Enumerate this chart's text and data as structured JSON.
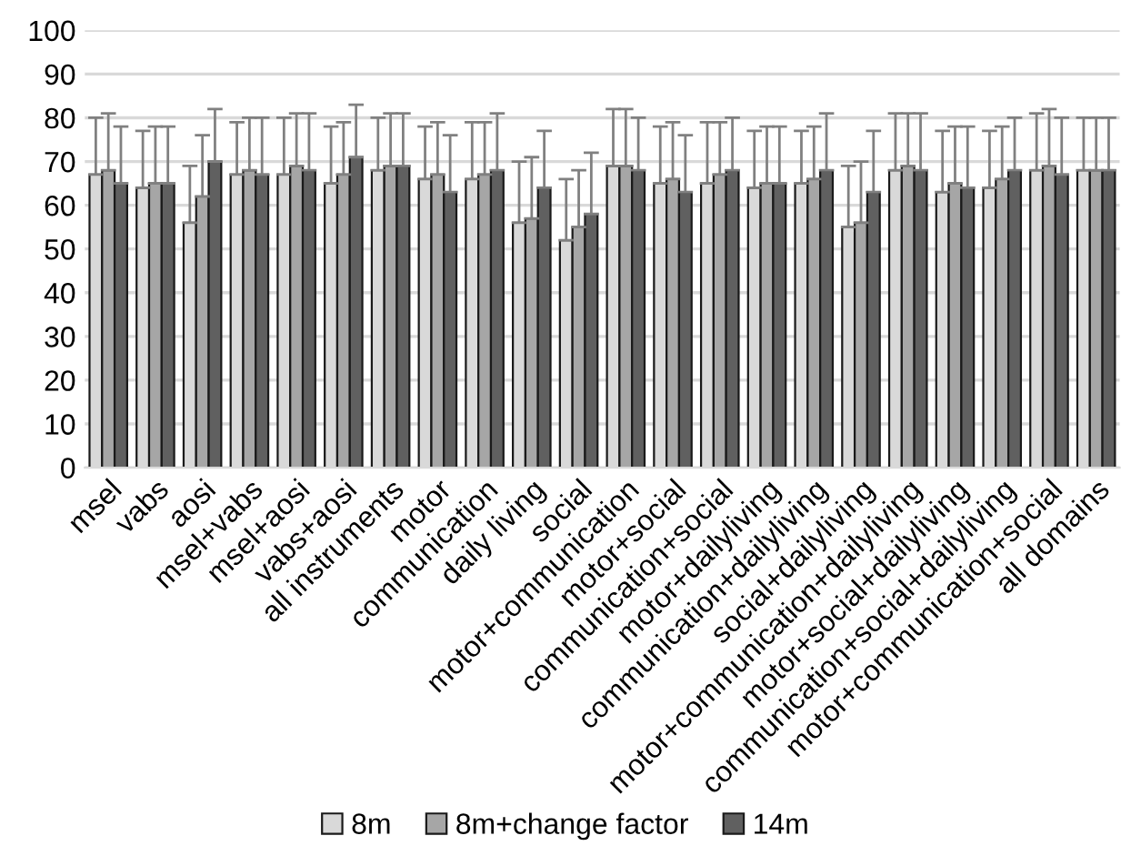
{
  "chart_data": {
    "type": "bar",
    "categories": [
      "msel",
      "vabs",
      "aosi",
      "msel+vabs",
      "msel+aosi",
      "vabs+aosi",
      "all instruments",
      "motor",
      "communication",
      "daily living",
      "social",
      "motor+communication",
      "motor+social",
      "communication+social",
      "motor+dailyliving",
      "communication+dailyliving",
      "social+dailyliving",
      "motor+communication+dailyliving",
      "motor+social+dailyliving",
      "communication+social+dailyliving",
      "motor+communication+social",
      "all domains"
    ],
    "series": [
      {
        "name": "8m",
        "color": "#d9d9d9",
        "values": [
          67,
          64,
          56,
          67,
          67,
          65,
          68,
          66,
          66,
          56,
          52,
          69,
          65,
          65,
          64,
          65,
          55,
          68,
          63,
          64,
          68,
          68
        ],
        "errors": [
          [
            67,
            80
          ],
          [
            64,
            77
          ],
          [
            56,
            69
          ],
          [
            67,
            79
          ],
          [
            67,
            80
          ],
          [
            65,
            78
          ],
          [
            68,
            80
          ],
          [
            66,
            78
          ],
          [
            66,
            79
          ],
          [
            56,
            70
          ],
          [
            52,
            66
          ],
          [
            69,
            82
          ],
          [
            65,
            78
          ],
          [
            65,
            79
          ],
          [
            64,
            77
          ],
          [
            65,
            77
          ],
          [
            55,
            69
          ],
          [
            68,
            81
          ],
          [
            63,
            77
          ],
          [
            64,
            77
          ],
          [
            68,
            81
          ],
          [
            68,
            80
          ]
        ]
      },
      {
        "name": "8m+change factor",
        "color": "#a6a6a6",
        "values": [
          68,
          65,
          62,
          68,
          69,
          67,
          69,
          67,
          67,
          57,
          55,
          69,
          66,
          67,
          65,
          66,
          56,
          69,
          65,
          66,
          69,
          68
        ],
        "errors": [
          [
            68,
            81
          ],
          [
            65,
            78
          ],
          [
            62,
            76
          ],
          [
            68,
            80
          ],
          [
            69,
            81
          ],
          [
            67,
            79
          ],
          [
            69,
            81
          ],
          [
            67,
            79
          ],
          [
            67,
            79
          ],
          [
            57,
            71
          ],
          [
            55,
            68
          ],
          [
            69,
            82
          ],
          [
            66,
            79
          ],
          [
            67,
            79
          ],
          [
            65,
            78
          ],
          [
            66,
            78
          ],
          [
            56,
            70
          ],
          [
            69,
            81
          ],
          [
            65,
            78
          ],
          [
            66,
            78
          ],
          [
            69,
            82
          ],
          [
            68,
            80
          ]
        ]
      },
      {
        "name": "14m",
        "color": "#606060",
        "values": [
          65,
          65,
          70,
          67,
          68,
          71,
          69,
          63,
          68,
          64,
          58,
          68,
          63,
          68,
          65,
          68,
          63,
          68,
          64,
          68,
          67,
          68
        ],
        "errors": [
          [
            65,
            78
          ],
          [
            65,
            78
          ],
          [
            70,
            82
          ],
          [
            67,
            80
          ],
          [
            68,
            81
          ],
          [
            71,
            83
          ],
          [
            69,
            81
          ],
          [
            63,
            76
          ],
          [
            68,
            81
          ],
          [
            64,
            77
          ],
          [
            58,
            72
          ],
          [
            68,
            80
          ],
          [
            63,
            76
          ],
          [
            68,
            80
          ],
          [
            65,
            78
          ],
          [
            68,
            81
          ],
          [
            63,
            77
          ],
          [
            68,
            81
          ],
          [
            64,
            78
          ],
          [
            68,
            80
          ],
          [
            67,
            80
          ],
          [
            68,
            80
          ]
        ]
      }
    ],
    "ylim": [
      0,
      100
    ],
    "yticks": [
      0,
      10,
      20,
      30,
      40,
      50,
      60,
      70,
      80,
      90,
      100
    ],
    "grid": "y",
    "legend": "bottom"
  }
}
